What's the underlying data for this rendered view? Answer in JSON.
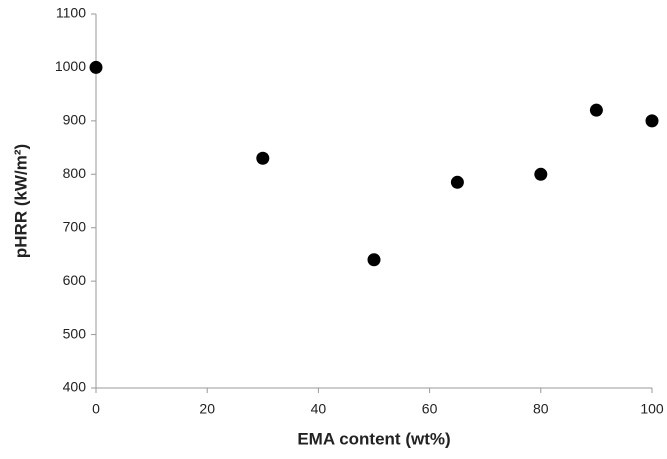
{
  "chart_data": {
    "type": "scatter",
    "x_label": "EMA content (wt%)",
    "y_label": "pHRR (kW/m²)",
    "series": [
      {
        "color": "#000000",
        "x": [
          0,
          30,
          50,
          65,
          80,
          90,
          100
        ],
        "values": [
          1000,
          830,
          640,
          785,
          800,
          920,
          900
        ]
      }
    ],
    "xlim": [
      0,
      100
    ],
    "xticks": [
      0,
      20,
      40,
      60,
      80,
      100
    ],
    "ylim": [
      400,
      1100
    ],
    "yticks": [
      400,
      500,
      600,
      700,
      800,
      900,
      1000,
      1100
    ],
    "grid": false
  }
}
